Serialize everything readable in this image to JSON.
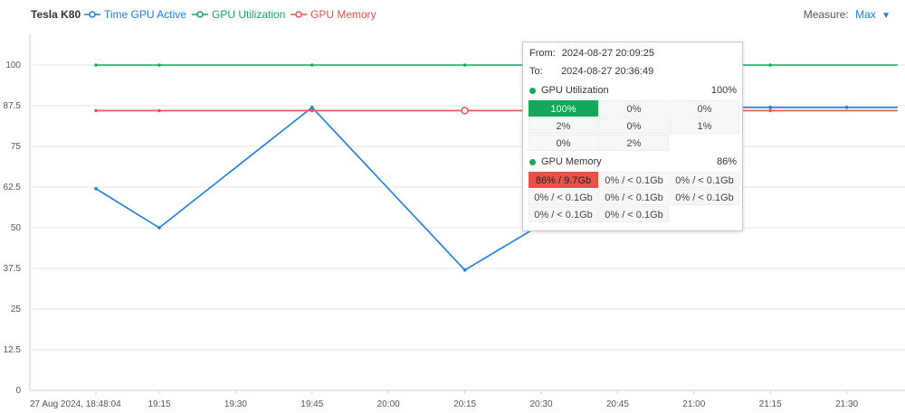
{
  "header": {
    "title": "Tesla K80",
    "legend": [
      {
        "label": "Time GPU Active",
        "color": "#1a7fe0"
      },
      {
        "label": "GPU Utilization",
        "color": "#13a85a"
      },
      {
        "label": "GPU Memory",
        "color": "#e8524a"
      }
    ],
    "measure_label": "Measure:",
    "measure_value": "Max"
  },
  "chart_data": {
    "type": "line",
    "x_tick_labels": [
      "27 Aug 2024, 18:48:04",
      "19:15",
      "19:30",
      "19:45",
      "20:00",
      "20:15",
      "20:30",
      "20:45",
      "21:00",
      "21:15",
      "21:30"
    ],
    "y_tick_labels": [
      "0",
      "12.5",
      "25",
      "37.5",
      "50",
      "62.5",
      "75",
      "87.5",
      "100"
    ],
    "ylim": [
      0,
      100
    ],
    "x": [
      "18:48",
      "19:15",
      "19:30",
      "19:45",
      "20:00",
      "20:15",
      "20:30",
      "20:45",
      "21:00",
      "21:15",
      "21:30"
    ],
    "series": [
      {
        "name": "Time GPU Active",
        "color": "#1a7fe0",
        "points": [
          [
            "18:48",
            62
          ],
          [
            "19:15",
            50
          ],
          [
            "19:45",
            87
          ],
          [
            "20:15",
            37
          ],
          [
            "20:30",
            51
          ],
          [
            "20:45",
            87
          ],
          [
            "21:00",
            87
          ],
          [
            "21:15",
            87
          ],
          [
            "21:30",
            87
          ],
          [
            "21:40",
            87
          ]
        ]
      },
      {
        "name": "GPU Utilization",
        "color": "#13a85a",
        "points": [
          [
            "18:48",
            100
          ],
          [
            "19:15",
            100
          ],
          [
            "19:45",
            100
          ],
          [
            "20:15",
            100
          ],
          [
            "20:45",
            100
          ],
          [
            "21:00",
            100
          ],
          [
            "21:15",
            100
          ],
          [
            "21:40",
            100
          ]
        ]
      },
      {
        "name": "GPU Memory",
        "color": "#e8524a",
        "points": [
          [
            "18:48",
            86
          ],
          [
            "19:15",
            86
          ],
          [
            "19:45",
            86
          ],
          [
            "20:15",
            86
          ],
          [
            "20:45",
            86
          ],
          [
            "21:00",
            86
          ],
          [
            "21:15",
            86
          ],
          [
            "21:40",
            86
          ]
        ]
      }
    ],
    "highlight": {
      "series": "GPU Memory",
      "x": "20:15"
    },
    "grid": true,
    "legend": "top-left"
  },
  "tooltip": {
    "from_label": "From:",
    "from_value": "2024-08-27 20:09:25",
    "to_label": "To:",
    "to_value": "2024-08-27 20:36:49",
    "utilization": {
      "label": "GPU Utilization",
      "value": "100%",
      "color": "#13a85a",
      "cells": [
        "100%",
        "0%",
        "0%",
        "2%",
        "0%",
        "1%",
        "0%",
        "2%"
      ]
    },
    "memory": {
      "label": "GPU Memory",
      "value": "86%",
      "color": "#13a85a",
      "cells": [
        "86% / 9.7Gb",
        "0% / < 0.1Gb",
        "0% / < 0.1Gb",
        "0% / < 0.1Gb",
        "0% / < 0.1Gb",
        "0% / < 0.1Gb",
        "0% / < 0.1Gb",
        "0% / < 0.1Gb"
      ]
    }
  }
}
